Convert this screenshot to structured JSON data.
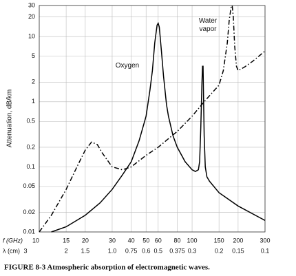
{
  "chart_data": {
    "type": "line",
    "title": "FIGURE 8-3   Atmospheric absorption of electromagnetic waves.",
    "y_label": "Attenuation, dB/km",
    "x_label": "f (GHz)",
    "x2_label": "λ (cm)",
    "log_x": true,
    "log_y": true,
    "grid": true,
    "xlim": [
      10,
      300
    ],
    "ylim": [
      0.01,
      30
    ],
    "xticks": [
      10,
      15,
      20,
      30,
      40,
      50,
      60,
      80,
      100,
      150,
      200,
      300
    ],
    "x2_ticklabels": [
      "3",
      "2",
      "1.5",
      "1.0",
      "0.75",
      "0.6",
      "0.5",
      "0.375",
      "0.3",
      "0.2",
      "0.15",
      "0.1"
    ],
    "yticks": [
      0.01,
      0.02,
      0.05,
      0.1,
      0.2,
      0.5,
      1,
      2,
      5,
      10,
      20,
      30
    ],
    "series": [
      {
        "name": "Oxygen",
        "color": "#000000",
        "line_style": "solid",
        "x": [
          12,
          15,
          20,
          25,
          30,
          35,
          40,
          45,
          50,
          53,
          55,
          57,
          59,
          60,
          61,
          63,
          65,
          68,
          70,
          75,
          80,
          90,
          100,
          105,
          110,
          112,
          114,
          116,
          117,
          118,
          119,
          120,
          122,
          125,
          130,
          150,
          200,
          300
        ],
        "values": [
          0.01,
          0.012,
          0.018,
          0.028,
          0.045,
          0.075,
          0.12,
          0.25,
          0.6,
          1.5,
          3,
          8,
          15,
          16,
          14,
          6,
          2.5,
          0.9,
          0.6,
          0.3,
          0.2,
          0.12,
          0.09,
          0.085,
          0.09,
          0.12,
          0.4,
          2,
          3.5,
          3.5,
          1,
          0.3,
          0.1,
          0.07,
          0.06,
          0.04,
          0.025,
          0.015
        ]
      },
      {
        "name": "Water vapor",
        "color": "#000000",
        "line_style": "dashdot",
        "x": [
          10,
          12,
          15,
          18,
          20,
          22,
          24,
          26,
          30,
          35,
          40,
          50,
          60,
          80,
          100,
          120,
          150,
          160,
          170,
          175,
          180,
          183,
          186,
          190,
          195,
          200,
          220,
          250,
          300
        ],
        "values": [
          0.01,
          0.018,
          0.045,
          0.11,
          0.18,
          0.24,
          0.22,
          0.16,
          0.1,
          0.09,
          0.1,
          0.15,
          0.2,
          0.35,
          0.6,
          1,
          1.8,
          3,
          8,
          18,
          28,
          30,
          20,
          7,
          3.5,
          3,
          3.4,
          4.2,
          6
        ]
      }
    ]
  }
}
